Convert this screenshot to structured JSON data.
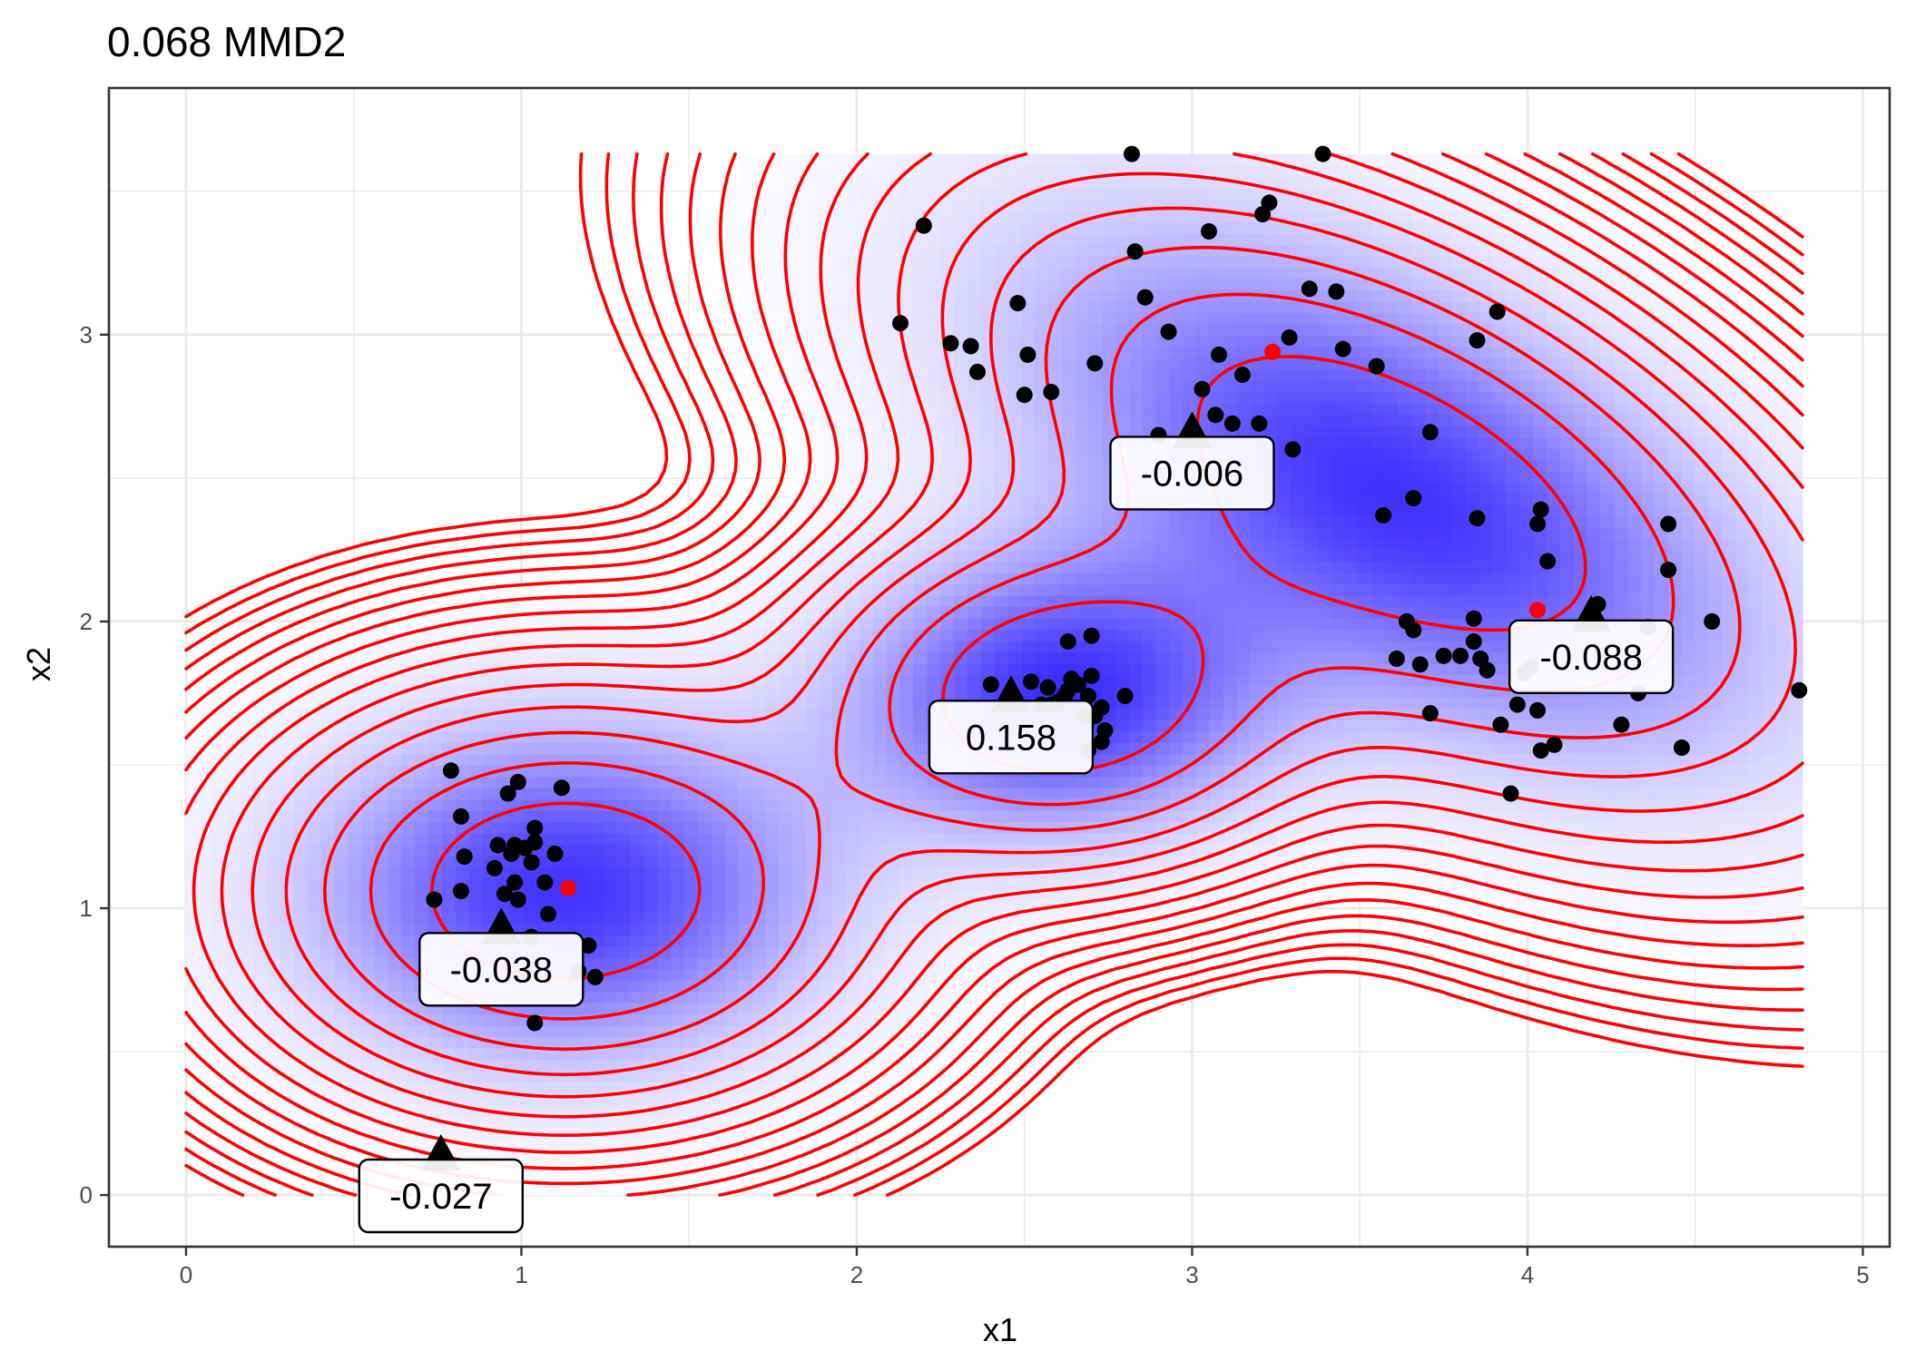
{
  "chart_data": {
    "type": "scatter",
    "title": "0.068 MMD2",
    "xlabel": "x1",
    "ylabel": "x2",
    "xlim": [
      -0.23,
      5.08
    ],
    "ylim": [
      -0.18,
      3.86
    ],
    "x_ticks": [
      0,
      1,
      2,
      3,
      4,
      5
    ],
    "y_ticks": [
      0,
      1,
      2,
      3
    ],
    "grid": true,
    "colors": {
      "points": "#000000",
      "centers": "#ff0000",
      "contours": "#ff0000",
      "density_high": "#3b2bff",
      "density_low": "#ffffff",
      "panel_border": "#333333",
      "grid": "#ebebeb"
    },
    "density_components": [
      {
        "cx": 1.13,
        "cy": 1.06,
        "sx": 0.52,
        "sy": 0.4,
        "rho": 0.0,
        "w": 1.0
      },
      {
        "cx": 2.6,
        "cy": 1.74,
        "sx": 0.42,
        "sy": 0.33,
        "rho": 0.0,
        "w": 1.0
      },
      {
        "cx": 3.6,
        "cy": 2.45,
        "sx": 0.75,
        "sy": 0.62,
        "rho": -0.55,
        "w": 1.0
      }
    ],
    "centers": [
      {
        "x": 1.14,
        "y": 1.07
      },
      {
        "x": 3.24,
        "y": 2.94
      },
      {
        "x": 4.03,
        "y": 2.04
      }
    ],
    "witness_points": [
      {
        "x": 0.76,
        "y": 0.13,
        "label": "-0.027"
      },
      {
        "x": 0.94,
        "y": 0.92,
        "label": "-0.038"
      },
      {
        "x": 2.46,
        "y": 1.73,
        "label": "0.158"
      },
      {
        "x": 3.0,
        "y": 2.65,
        "label": "-0.006"
      },
      {
        "x": 4.19,
        "y": 2.01,
        "label": "-0.088"
      }
    ],
    "points": [
      [
        0.79,
        1.48
      ],
      [
        0.99,
        1.44
      ],
      [
        1.12,
        1.42
      ],
      [
        0.82,
        1.32
      ],
      [
        0.96,
        1.4
      ],
      [
        1.04,
        1.28
      ],
      [
        0.83,
        1.18
      ],
      [
        0.93,
        1.22
      ],
      [
        0.97,
        1.19
      ],
      [
        1.01,
        1.21
      ],
      [
        1.04,
        1.23
      ],
      [
        1.1,
        1.19
      ],
      [
        0.92,
        1.14
      ],
      [
        0.98,
        1.09
      ],
      [
        1.03,
        1.16
      ],
      [
        1.07,
        1.09
      ],
      [
        0.95,
        1.05
      ],
      [
        0.82,
        1.06
      ],
      [
        0.74,
        1.03
      ],
      [
        0.99,
        1.03
      ],
      [
        1.08,
        0.98
      ],
      [
        0.95,
        0.9
      ],
      [
        1.2,
        0.87
      ],
      [
        1.22,
        0.76
      ],
      [
        1.17,
        0.78
      ],
      [
        1.04,
        0.6
      ],
      [
        1.03,
        0.9
      ],
      [
        0.98,
        1.22
      ],
      [
        2.13,
        3.04
      ],
      [
        2.2,
        3.38
      ],
      [
        2.28,
        2.97
      ],
      [
        2.34,
        2.96
      ],
      [
        2.36,
        2.87
      ],
      [
        2.48,
        3.11
      ],
      [
        2.51,
        2.93
      ],
      [
        2.5,
        2.79
      ],
      [
        2.58,
        2.8
      ],
      [
        2.71,
        2.9
      ],
      [
        2.82,
        3.63
      ],
      [
        2.83,
        3.29
      ],
      [
        2.86,
        3.13
      ],
      [
        2.93,
        3.01
      ],
      [
        2.9,
        2.65
      ],
      [
        3.03,
        2.81
      ],
      [
        3.05,
        3.36
      ],
      [
        3.08,
        2.93
      ],
      [
        3.07,
        2.72
      ],
      [
        3.12,
        2.69
      ],
      [
        3.15,
        2.86
      ],
      [
        3.2,
        2.69
      ],
      [
        3.21,
        3.42
      ],
      [
        3.23,
        3.46
      ],
      [
        3.29,
        2.99
      ],
      [
        3.3,
        2.6
      ],
      [
        3.35,
        3.16
      ],
      [
        3.39,
        3.63
      ],
      [
        3.43,
        3.15
      ],
      [
        3.45,
        2.95
      ],
      [
        3.55,
        2.89
      ],
      [
        3.57,
        2.37
      ],
      [
        3.66,
        2.43
      ],
      [
        3.71,
        2.66
      ],
      [
        3.71,
        1.68
      ],
      [
        3.85,
        2.98
      ],
      [
        3.85,
        2.36
      ],
      [
        3.91,
        3.08
      ],
      [
        4.03,
        2.34
      ],
      [
        4.04,
        2.39
      ],
      [
        4.06,
        2.21
      ],
      [
        3.64,
        2.0
      ],
      [
        3.66,
        1.97
      ],
      [
        3.61,
        1.87
      ],
      [
        3.68,
        1.85
      ],
      [
        3.75,
        1.88
      ],
      [
        3.8,
        1.88
      ],
      [
        3.84,
        1.93
      ],
      [
        3.86,
        1.87
      ],
      [
        3.92,
        1.64
      ],
      [
        3.88,
        1.83
      ],
      [
        3.97,
        1.71
      ],
      [
        3.99,
        1.82
      ],
      [
        4.03,
        1.69
      ],
      [
        4.04,
        1.55
      ],
      [
        4.08,
        1.57
      ],
      [
        3.95,
        1.4
      ],
      [
        4.21,
        2.06
      ],
      [
        4.28,
        1.64
      ],
      [
        4.33,
        1.75
      ],
      [
        4.36,
        1.98
      ],
      [
        4.42,
        2.34
      ],
      [
        4.42,
        2.18
      ],
      [
        4.46,
        1.56
      ],
      [
        4.55,
        2.0
      ],
      [
        4.81,
        1.76
      ],
      [
        4.01,
        1.84
      ],
      [
        3.84,
        2.01
      ],
      [
        2.4,
        1.78
      ],
      [
        2.52,
        1.79
      ],
      [
        2.57,
        1.77
      ],
      [
        2.63,
        1.76
      ],
      [
        2.66,
        1.78
      ],
      [
        2.69,
        1.74
      ],
      [
        2.7,
        1.81
      ],
      [
        2.64,
        1.8
      ],
      [
        2.62,
        1.74
      ],
      [
        2.55,
        1.71
      ],
      [
        2.6,
        1.72
      ],
      [
        2.68,
        1.67
      ],
      [
        2.71,
        1.67
      ],
      [
        2.73,
        1.7
      ],
      [
        2.8,
        1.74
      ],
      [
        2.73,
        1.58
      ],
      [
        2.69,
        1.55
      ],
      [
        2.63,
        1.93
      ],
      [
        2.7,
        1.95
      ],
      [
        2.58,
        1.71
      ],
      [
        2.74,
        1.62
      ]
    ]
  }
}
